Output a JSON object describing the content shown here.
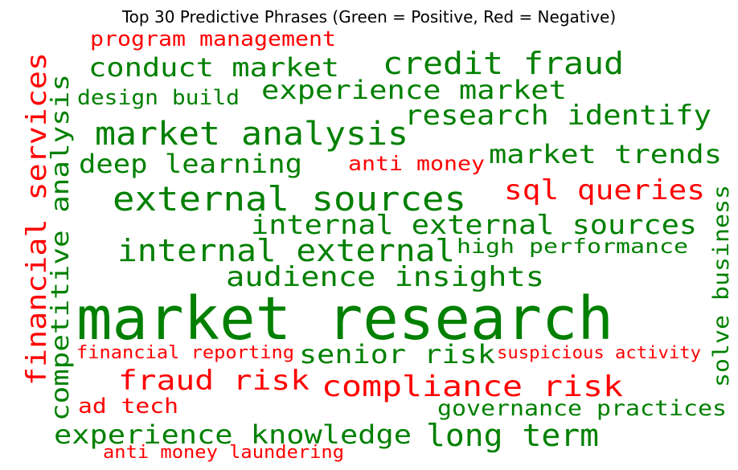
{
  "chart_data": {
    "type": "wordcloud",
    "title": "Top 30 Predictive Phrases (Green = Positive, Red = Negative)",
    "colors": {
      "positive": "#008000",
      "negative": "#ff0000"
    },
    "words": [
      {
        "text": "market research",
        "sentiment": "positive"
      },
      {
        "text": "external sources",
        "sentiment": "positive"
      },
      {
        "text": "market analysis",
        "sentiment": "positive"
      },
      {
        "text": "internal external",
        "sentiment": "positive"
      },
      {
        "text": "credit fraud",
        "sentiment": "positive"
      },
      {
        "text": "compliance risk",
        "sentiment": "negative"
      },
      {
        "text": "financial services",
        "sentiment": "negative"
      },
      {
        "text": "research identify",
        "sentiment": "positive"
      },
      {
        "text": "internal external sources",
        "sentiment": "positive"
      },
      {
        "text": "fraud risk",
        "sentiment": "negative"
      },
      {
        "text": "experience knowledge",
        "sentiment": "positive"
      },
      {
        "text": "long term",
        "sentiment": "positive"
      },
      {
        "text": "audience insights",
        "sentiment": "positive"
      },
      {
        "text": "sql queries",
        "sentiment": "negative"
      },
      {
        "text": "conduct market",
        "sentiment": "positive"
      },
      {
        "text": "experience market",
        "sentiment": "positive"
      },
      {
        "text": "market trends",
        "sentiment": "positive"
      },
      {
        "text": "senior risk",
        "sentiment": "positive"
      },
      {
        "text": "competitive analysis",
        "sentiment": "positive"
      },
      {
        "text": "deep learning",
        "sentiment": "positive"
      },
      {
        "text": "design build",
        "sentiment": "positive"
      },
      {
        "text": "high performance",
        "sentiment": "positive"
      },
      {
        "text": "governance practices",
        "sentiment": "positive"
      },
      {
        "text": "solve business",
        "sentiment": "positive"
      },
      {
        "text": "program management",
        "sentiment": "negative"
      },
      {
        "text": "anti money",
        "sentiment": "negative"
      },
      {
        "text": "ad tech",
        "sentiment": "negative"
      },
      {
        "text": "financial reporting",
        "sentiment": "negative"
      },
      {
        "text": "suspicious activity",
        "sentiment": "negative"
      },
      {
        "text": "anti money laundering",
        "sentiment": "negative"
      }
    ]
  }
}
